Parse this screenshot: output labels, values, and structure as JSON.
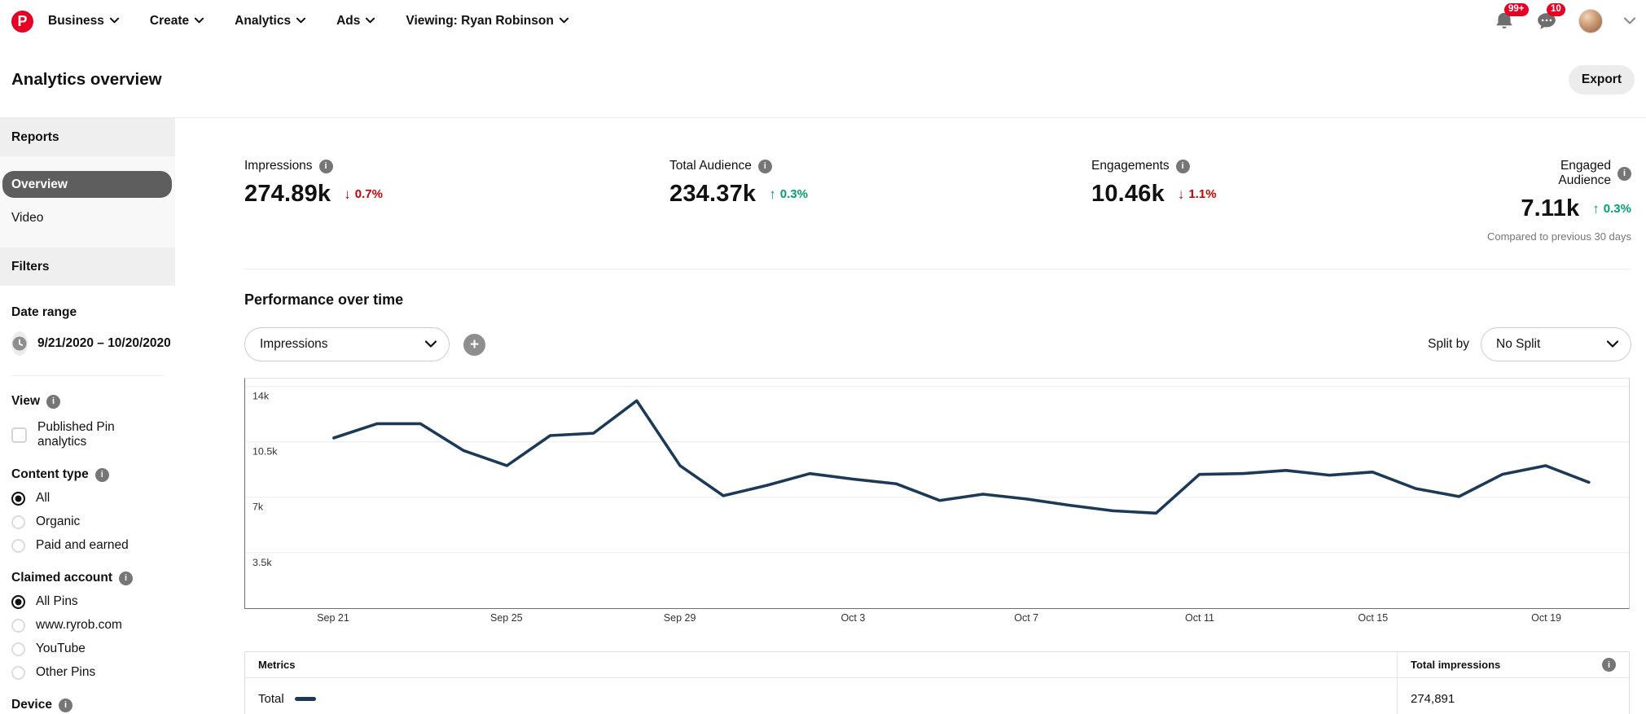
{
  "colors": {
    "brand_red": "#e60023",
    "delta_down": "#cc0000",
    "delta_up": "#00a36b",
    "line": "#1c3a57"
  },
  "nav": {
    "logo_letter": "P",
    "items": [
      {
        "label": "Business"
      },
      {
        "label": "Create"
      },
      {
        "label": "Analytics"
      },
      {
        "label": "Ads"
      },
      {
        "label": "Viewing: Ryan Robinson"
      }
    ],
    "notifications_badge": "99+",
    "messages_badge": "10"
  },
  "header": {
    "title": "Analytics overview",
    "export_label": "Export"
  },
  "sidebar": {
    "reports_header": "Reports",
    "reports_items": [
      {
        "label": "Overview",
        "selected": true
      },
      {
        "label": "Video",
        "selected": false
      }
    ],
    "filters_header": "Filters",
    "date_range": {
      "label": "Date range",
      "value": "9/21/2020 – 10/20/2020"
    },
    "view": {
      "label": "View",
      "checkbox_label": "Published Pin analytics",
      "checked": false
    },
    "content_type": {
      "label": "Content type",
      "options": [
        {
          "label": "All",
          "selected": true
        },
        {
          "label": "Organic",
          "selected": false
        },
        {
          "label": "Paid and earned",
          "selected": false
        }
      ]
    },
    "claimed_account": {
      "label": "Claimed account",
      "options": [
        {
          "label": "All Pins",
          "selected": true
        },
        {
          "label": "www.ryrob.com",
          "selected": false
        },
        {
          "label": "YouTube",
          "selected": false
        },
        {
          "label": "Other Pins",
          "selected": false
        }
      ]
    },
    "device": {
      "label": "Device"
    }
  },
  "stats": [
    {
      "label": "Impressions",
      "value": "274.89k",
      "arrow": "↓",
      "delta": "0.7%",
      "direction": "down"
    },
    {
      "label": "Total Audience",
      "value": "234.37k",
      "arrow": "↑",
      "delta": "0.3%",
      "direction": "up"
    },
    {
      "label": "Engagements",
      "value": "10.46k",
      "arrow": "↓",
      "delta": "1.1%",
      "direction": "down"
    },
    {
      "label": "Engaged Audience",
      "value": "7.11k",
      "arrow": "↑",
      "delta": "0.3%",
      "direction": "up"
    }
  ],
  "compared_note": "Compared to previous 30 days",
  "performance": {
    "title": "Performance over time",
    "metric_selector": "Impressions",
    "split_by_label": "Split by",
    "split_selector": "No Split"
  },
  "chart_data": {
    "type": "line",
    "title": "Performance over time",
    "x": [
      "Sep 21",
      "Sep 22",
      "Sep 23",
      "Sep 24",
      "Sep 25",
      "Sep 26",
      "Sep 27",
      "Sep 28",
      "Sep 29",
      "Sep 30",
      "Oct 1",
      "Oct 2",
      "Oct 3",
      "Oct 4",
      "Oct 5",
      "Oct 6",
      "Oct 7",
      "Oct 8",
      "Oct 9",
      "Oct 10",
      "Oct 11",
      "Oct 12",
      "Oct 13",
      "Oct 14",
      "Oct 15",
      "Oct 16",
      "Oct 17",
      "Oct 18",
      "Oct 19",
      "Oct 20"
    ],
    "series": [
      {
        "name": "Total",
        "color": "#1c3a57",
        "values": [
          10750,
          11650,
          11650,
          9950,
          9000,
          10900,
          11050,
          13100,
          9000,
          7100,
          7750,
          8500,
          8150,
          7850,
          6800,
          7200,
          6900,
          6500,
          6150,
          6000,
          8450,
          8500,
          8700,
          8400,
          8600,
          7550,
          7050,
          8450,
          9000,
          7950
        ]
      }
    ],
    "x_tick_labels": [
      "Sep 21",
      "Sep 25",
      "Sep 29",
      "Oct 3",
      "Oct 7",
      "Oct 11",
      "Oct 15",
      "Oct 19"
    ],
    "x_tick_indices": [
      0,
      4,
      8,
      12,
      16,
      20,
      24,
      28
    ],
    "y_ticks": [
      {
        "label": "14k",
        "value": 14000
      },
      {
        "label": "10.5k",
        "value": 10500
      },
      {
        "label": "7k",
        "value": 7000
      },
      {
        "label": "3.5k",
        "value": 3500
      }
    ],
    "ylim": [
      0,
      14500
    ],
    "grid": "horizontal",
    "xlabel": "",
    "ylabel": "Impressions"
  },
  "table": {
    "metrics_header": "Metrics",
    "value_header": "Total impressions",
    "rows": [
      {
        "metric": "Total",
        "value": "274,891"
      }
    ]
  }
}
